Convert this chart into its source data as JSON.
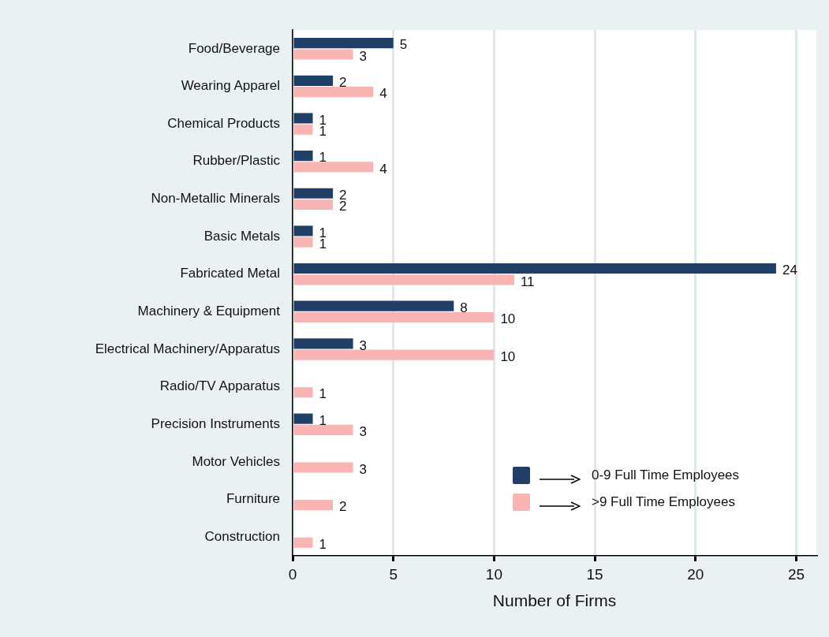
{
  "chart_data": {
    "type": "bar",
    "orientation": "horizontal",
    "categories": [
      "Food/Beverage",
      "Wearing Apparel",
      "Chemical Products",
      "Rubber/Plastic",
      "Non-Metallic Minerals",
      "Basic Metals",
      "Fabricated Metal",
      "Machinery & Equipment",
      "Electrical Machinery/Apparatus",
      "Radio/TV Apparatus",
      "Precision Instruments",
      "Motor Vehicles",
      "Furniture",
      "Construction"
    ],
    "series": [
      {
        "name": "0-9 Full Time Employees",
        "color": "#1f3f66",
        "values": [
          5,
          2,
          1,
          1,
          2,
          1,
          24,
          8,
          3,
          null,
          1,
          null,
          null,
          null
        ]
      },
      {
        "name": ">9 Full Time Employees",
        "color": "#f9b4b4",
        "values": [
          3,
          4,
          1,
          4,
          2,
          1,
          11,
          10,
          10,
          1,
          3,
          3,
          2,
          1
        ]
      }
    ],
    "xlabel": "Number of Firms",
    "xlim": [
      0,
      26
    ],
    "xticks": [
      0,
      5,
      10,
      15,
      20,
      25
    ],
    "grid": "x",
    "legend": "bottom right",
    "data_labels": true
  }
}
